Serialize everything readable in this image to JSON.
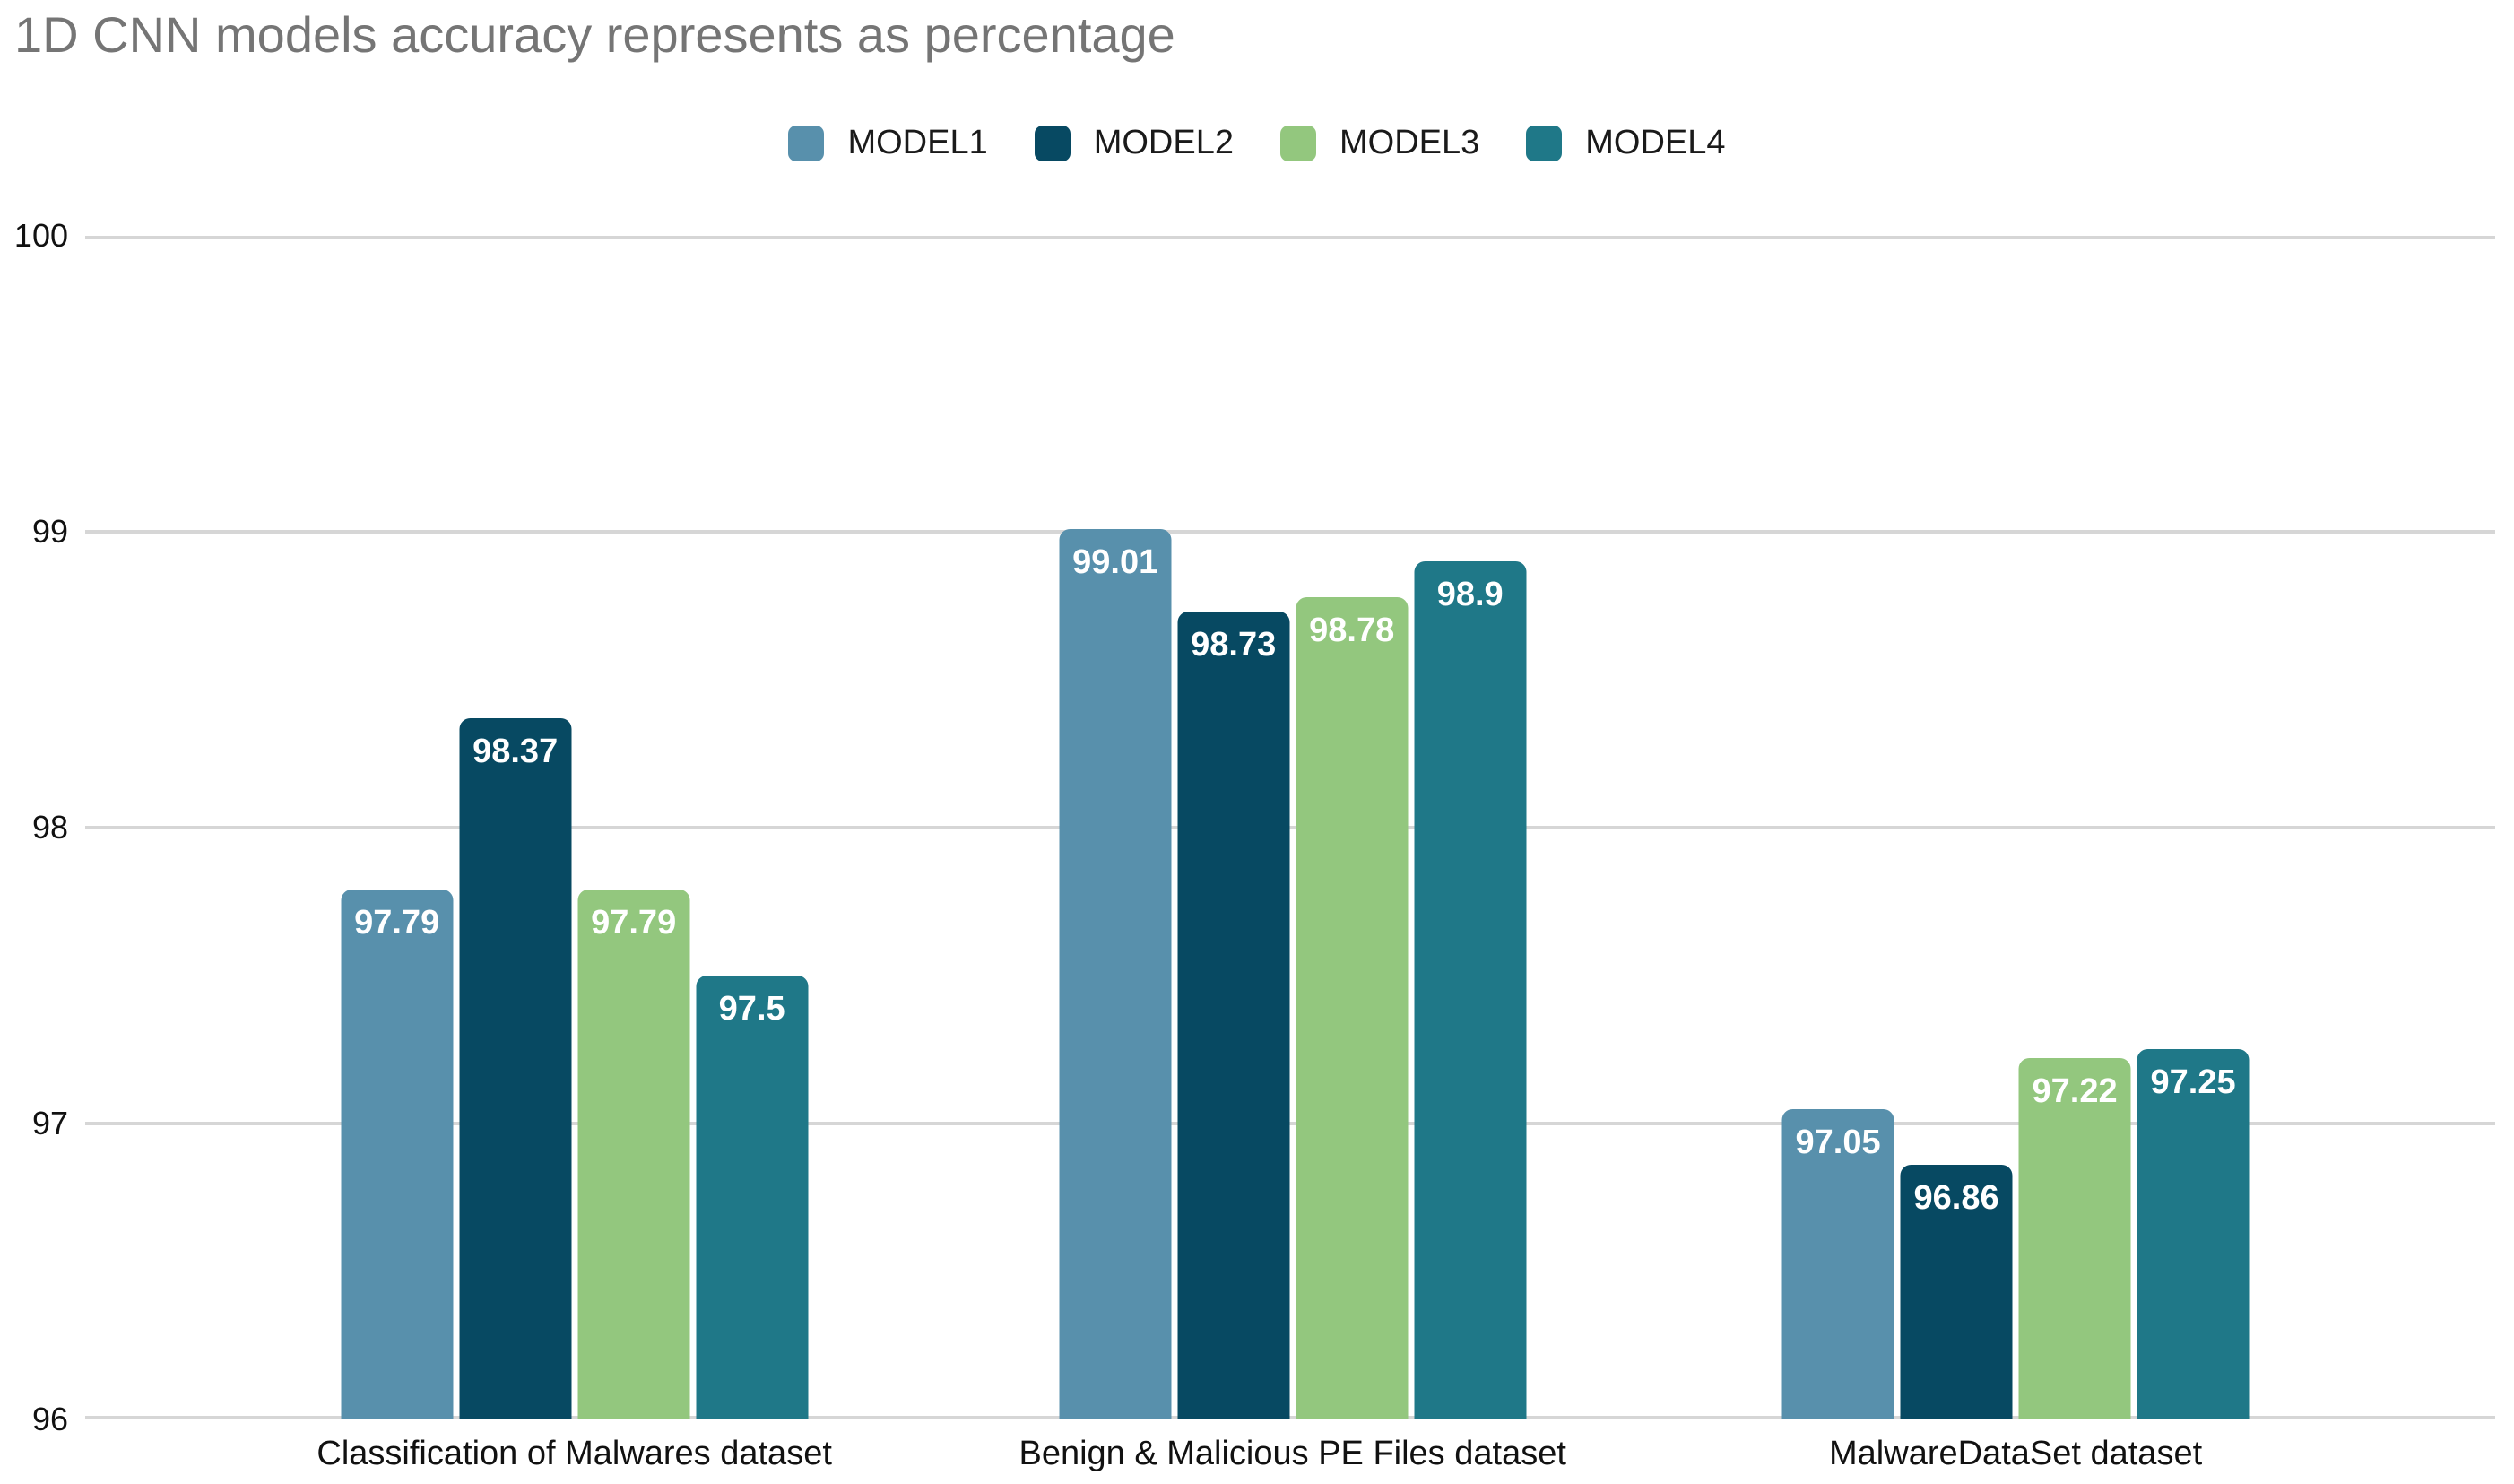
{
  "title": "1D CNN models accuracy represents as percentage",
  "chart_data": {
    "type": "bar",
    "title": "1D CNN models accuracy represents as percentage",
    "xlabel": "",
    "ylabel": "",
    "ylim": [
      96,
      100
    ],
    "yticks": [
      96,
      97,
      98,
      99,
      100
    ],
    "grid": true,
    "legend_position": "top",
    "categories": [
      "Classification of Malwares dataset",
      "Benign & Malicious PE Files dataset",
      "MalwareDataSet dataset"
    ],
    "series": [
      {
        "name": "MODEL1",
        "color": "#5890AC",
        "values": [
          97.79,
          99.01,
          97.05
        ]
      },
      {
        "name": "MODEL2",
        "color": "#074962",
        "values": [
          98.37,
          98.73,
          96.86
        ]
      },
      {
        "name": "MODEL3",
        "color": "#93C77E",
        "values": [
          97.79,
          98.78,
          97.22
        ]
      },
      {
        "name": "MODEL4",
        "color": "#1F7888",
        "values": [
          97.5,
          98.9,
          97.25
        ]
      }
    ],
    "colors": {
      "title_text": "#757575",
      "axis_text": "#111111",
      "gridline": "#d6d6d6",
      "value_label_text": "#ffffff",
      "background": "#ffffff"
    }
  }
}
